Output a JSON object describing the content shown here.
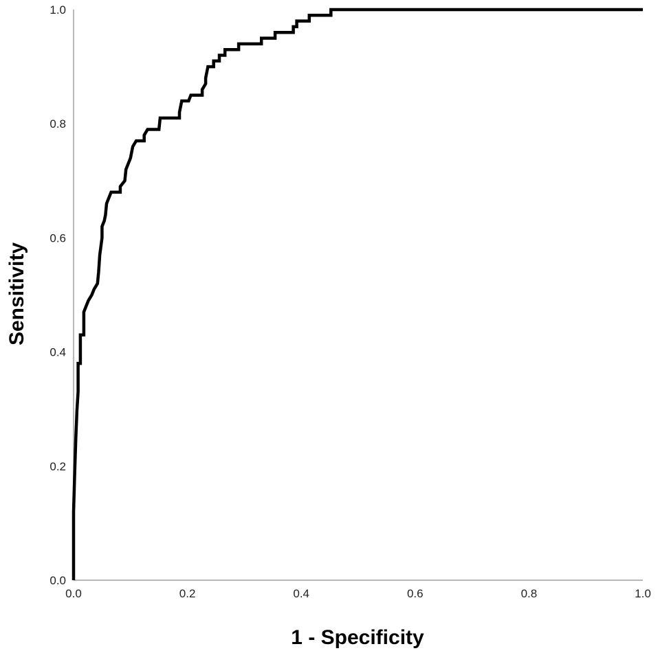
{
  "chart_data": {
    "type": "line",
    "title": "",
    "xlabel": "1 - Specificity",
    "ylabel": "Sensitivity",
    "xlim": [
      0.0,
      1.0
    ],
    "ylim": [
      0.0,
      1.0
    ],
    "xticks": [
      "0.0",
      "0.2",
      "0.4",
      "0.6",
      "0.8",
      "1.0"
    ],
    "yticks": [
      "0.0",
      "0.2",
      "0.4",
      "0.6",
      "0.8",
      "1.0"
    ],
    "grid": false,
    "legend": "none",
    "line_color": "#000000",
    "axis_color": "#a0a0a0",
    "series": [
      {
        "points": [
          [
            0.0,
            0.0
          ],
          [
            0.0,
            0.12
          ],
          [
            0.002,
            0.19
          ],
          [
            0.004,
            0.25
          ],
          [
            0.006,
            0.3
          ],
          [
            0.008,
            0.33
          ],
          [
            0.008,
            0.38
          ],
          [
            0.012,
            0.38
          ],
          [
            0.012,
            0.43
          ],
          [
            0.018,
            0.43
          ],
          [
            0.018,
            0.47
          ],
          [
            0.022,
            0.48
          ],
          [
            0.026,
            0.49
          ],
          [
            0.032,
            0.5
          ],
          [
            0.036,
            0.51
          ],
          [
            0.042,
            0.52
          ],
          [
            0.044,
            0.54
          ],
          [
            0.046,
            0.57
          ],
          [
            0.05,
            0.6
          ],
          [
            0.05,
            0.62
          ],
          [
            0.054,
            0.63
          ],
          [
            0.056,
            0.64
          ],
          [
            0.058,
            0.66
          ],
          [
            0.062,
            0.67
          ],
          [
            0.066,
            0.68
          ],
          [
            0.082,
            0.68
          ],
          [
            0.082,
            0.69
          ],
          [
            0.09,
            0.7
          ],
          [
            0.092,
            0.72
          ],
          [
            0.096,
            0.73
          ],
          [
            0.1,
            0.74
          ],
          [
            0.104,
            0.76
          ],
          [
            0.11,
            0.77
          ],
          [
            0.124,
            0.77
          ],
          [
            0.124,
            0.78
          ],
          [
            0.13,
            0.79
          ],
          [
            0.15,
            0.79
          ],
          [
            0.152,
            0.81
          ],
          [
            0.186,
            0.81
          ],
          [
            0.186,
            0.82
          ],
          [
            0.19,
            0.84
          ],
          [
            0.202,
            0.84
          ],
          [
            0.206,
            0.85
          ],
          [
            0.226,
            0.85
          ],
          [
            0.226,
            0.86
          ],
          [
            0.232,
            0.87
          ],
          [
            0.232,
            0.88
          ],
          [
            0.236,
            0.9
          ],
          [
            0.246,
            0.9
          ],
          [
            0.246,
            0.91
          ],
          [
            0.256,
            0.91
          ],
          [
            0.256,
            0.92
          ],
          [
            0.266,
            0.92
          ],
          [
            0.266,
            0.93
          ],
          [
            0.29,
            0.93
          ],
          [
            0.29,
            0.94
          ],
          [
            0.33,
            0.94
          ],
          [
            0.33,
            0.95
          ],
          [
            0.354,
            0.95
          ],
          [
            0.354,
            0.96
          ],
          [
            0.386,
            0.96
          ],
          [
            0.386,
            0.97
          ],
          [
            0.392,
            0.97
          ],
          [
            0.392,
            0.98
          ],
          [
            0.414,
            0.98
          ],
          [
            0.414,
            0.99
          ],
          [
            0.452,
            0.99
          ],
          [
            0.452,
            1.0
          ],
          [
            1.0,
            1.0
          ]
        ]
      }
    ]
  }
}
